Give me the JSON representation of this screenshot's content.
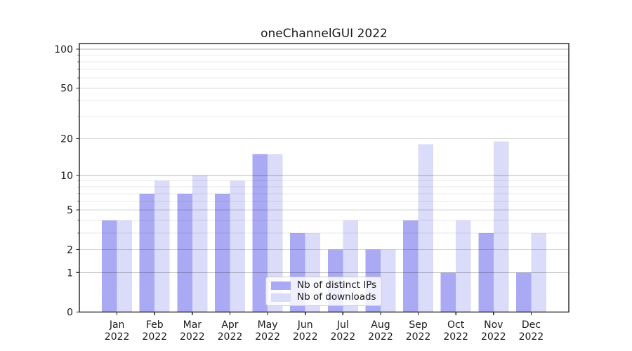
{
  "chart_data": {
    "type": "bar",
    "title": "oneChannelGUI 2022",
    "categories": [
      "Jan",
      "Feb",
      "Mar",
      "Apr",
      "May",
      "Jun",
      "Jul",
      "Aug",
      "Sep",
      "Oct",
      "Nov",
      "Dec"
    ],
    "category_year": "2022",
    "series": [
      {
        "name": "Nb of distinct IPs",
        "color": "#a9a9f4",
        "values": [
          4,
          7,
          7,
          7,
          15,
          3,
          2,
          2,
          4,
          1,
          3,
          1
        ]
      },
      {
        "name": "Nb of downloads",
        "color": "#dbdbfa",
        "values": [
          4,
          9,
          10,
          9,
          15,
          3,
          4,
          2,
          18,
          4,
          19,
          3
        ]
      }
    ],
    "xlabel": "",
    "ylabel": "",
    "yscale": "log1p",
    "ylim": [
      0,
      110
    ],
    "yticks": [
      0,
      1,
      2,
      5,
      10,
      20,
      50,
      100
    ],
    "decade_ticks": [
      1,
      10,
      100
    ],
    "minor_yticks": [
      3,
      4,
      6,
      7,
      8,
      9,
      30,
      40,
      60,
      70,
      80,
      90
    ],
    "grid": true,
    "legend_position": "lower center",
    "grid_colors": {
      "decade": "#bababa",
      "labeled": "#d4d4d4",
      "minor": "#eaeaea"
    },
    "frame_color": "#111111",
    "tick_text_color": "#1a1a1a"
  }
}
